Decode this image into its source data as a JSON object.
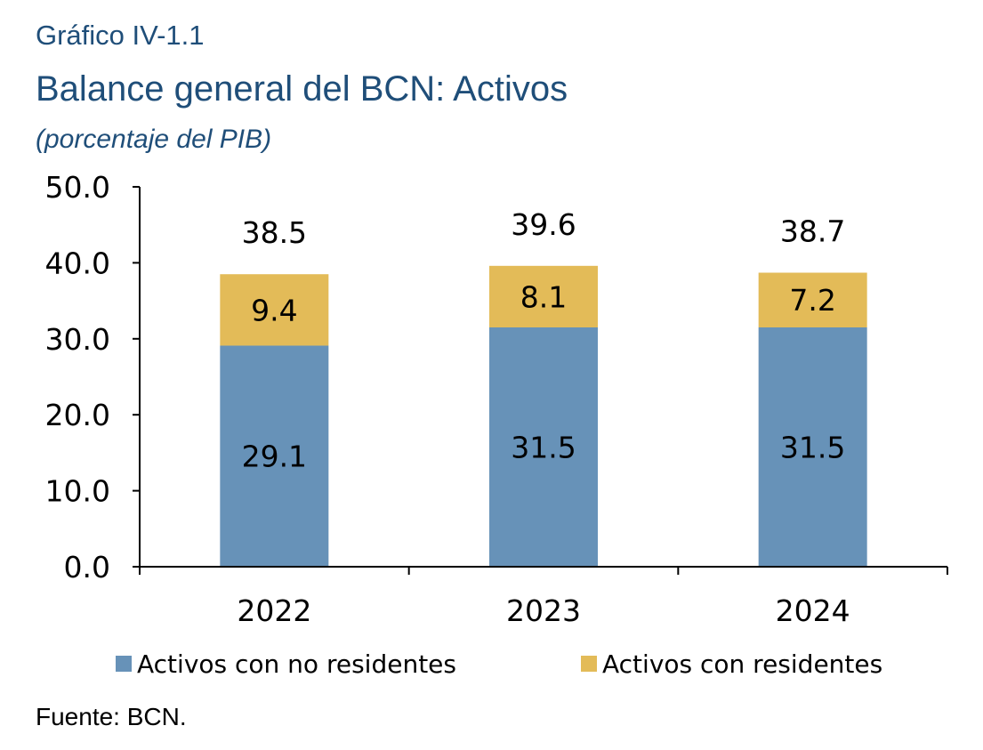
{
  "header": {
    "kicker": "Gráfico IV-1.1",
    "title": "Balance general del BCN: Activos",
    "subtitle": "(porcentaje del PIB)"
  },
  "footer": {
    "source": "Fuente: BCN."
  },
  "colors": {
    "title": "#1f4e79",
    "series_no_residentes": "#6792b8",
    "series_residentes": "#e3bb58"
  },
  "chart_data": {
    "type": "bar",
    "stacked": true,
    "categories": [
      "2022",
      "2023",
      "2024"
    ],
    "series": [
      {
        "name": "Activos con no residentes",
        "values": [
          29.1,
          31.5,
          31.5
        ],
        "color": "#6792b8"
      },
      {
        "name": "Activos con residentes",
        "values": [
          9.4,
          8.1,
          7.2
        ],
        "color": "#e3bb58"
      }
    ],
    "totals": [
      "38.5",
      "39.6",
      "38.7"
    ],
    "segment_labels": [
      [
        "29.1",
        "31.5",
        "31.5"
      ],
      [
        "9.4",
        "8.1",
        "7.2"
      ]
    ],
    "yticks": [
      "0.0",
      "10.0",
      "20.0",
      "30.0",
      "40.0",
      "50.0"
    ],
    "ylim": [
      0,
      50
    ],
    "legend_position": "bottom",
    "grid": false
  }
}
